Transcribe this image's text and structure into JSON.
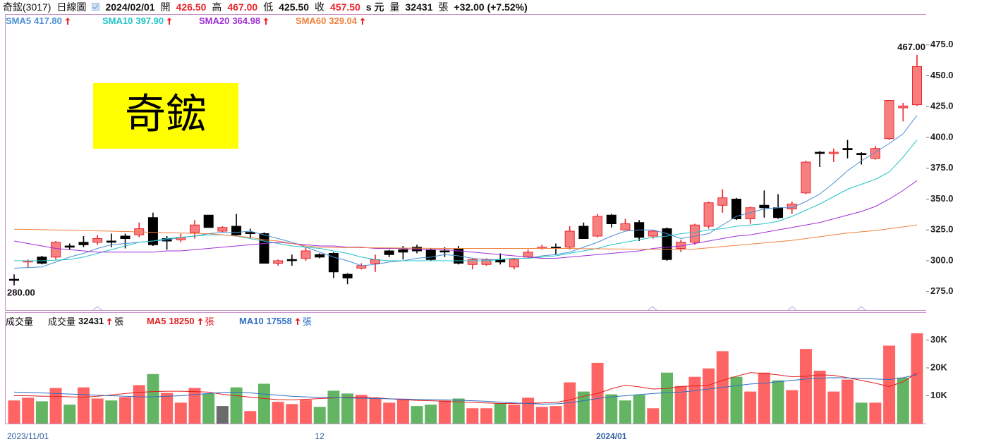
{
  "header": {
    "name": "奇鋐(3017)",
    "period": "日線圖",
    "date": "2024/02/01",
    "open_label": "開",
    "open": "426.50",
    "high_label": "高",
    "high": "467.00",
    "low_label": "低",
    "low": "425.50",
    "close_label": "收",
    "close": "457.50",
    "unit": "s 元",
    "volume_label": "量",
    "volume": "32431",
    "volume_unit": "張",
    "change": "+32.00 (+7.52%)"
  },
  "chart_data": [
    {
      "type": "candlestick",
      "watermark": "奇鋐",
      "high_label": "467.00",
      "low_label": "280.00",
      "up_color": "#f77f7f",
      "up_edge": "#e8262c",
      "down_color": "#000000",
      "open": [
        285,
        299,
        303,
        303,
        312,
        315,
        315,
        316,
        320,
        321,
        335,
        318,
        317,
        323,
        337,
        324,
        328,
        323,
        322,
        298,
        301,
        302,
        305,
        306,
        289,
        294,
        298,
        308,
        309,
        311,
        309,
        308,
        310,
        297,
        297,
        301,
        295,
        303,
        310,
        311,
        311,
        328,
        320,
        337,
        325,
        331,
        320,
        326,
        310,
        315,
        328,
        345,
        350,
        334,
        345,
        343,
        342,
        355,
        388,
        387,
        391,
        387,
        383,
        399,
        424,
        426.5
      ],
      "high": [
        289,
        301,
        304,
        316,
        314,
        320,
        321,
        322,
        322,
        331,
        339,
        320,
        322,
        333,
        337,
        328,
        338,
        326,
        323,
        301,
        305,
        311,
        306,
        307,
        290,
        298,
        305,
        309,
        312,
        313,
        310,
        311,
        312,
        302,
        302,
        306,
        302,
        309,
        313,
        314,
        328,
        331,
        338,
        338,
        334,
        333,
        325,
        327,
        317,
        330,
        348,
        358,
        351,
        344,
        357,
        354,
        348,
        381,
        389,
        391,
        398,
        388,
        393,
        430,
        428,
        467
      ],
      "low": [
        280,
        294,
        297,
        301,
        309,
        311,
        313,
        311,
        310,
        319,
        312,
        309,
        315,
        318,
        327,
        323,
        320,
        318,
        298,
        296,
        296,
        300,
        302,
        286,
        281,
        293,
        291,
        303,
        301,
        306,
        300,
        303,
        297,
        293,
        296,
        297,
        293,
        302,
        309,
        305,
        309,
        318,
        319,
        327,
        325,
        316,
        318,
        300,
        307,
        313,
        326,
        339,
        333,
        330,
        335,
        334,
        338,
        354,
        376,
        380,
        383,
        378,
        382,
        398,
        413,
        425.5
      ],
      "close": [
        285,
        300,
        298,
        315,
        311,
        313,
        318,
        315,
        318,
        326,
        313,
        316,
        319,
        329,
        327,
        327,
        321,
        322,
        298,
        300,
        301,
        308,
        303,
        291,
        286,
        296,
        301,
        305,
        307,
        308,
        301,
        308,
        298,
        301,
        301,
        299,
        301,
        307,
        311,
        311,
        324,
        318,
        336,
        330,
        330,
        319,
        324,
        301,
        315,
        329,
        347,
        351,
        334,
        343,
        343,
        335,
        346,
        380,
        387,
        388,
        390,
        386,
        391,
        430,
        425.5,
        457.5
      ],
      "series": [
        {
          "name": "SMA5",
          "color": "#4a8fd6",
          "legend_value": "417.80",
          "values": [
            294,
            294.5,
            295,
            299,
            303,
            306,
            310,
            313,
            314,
            315,
            316,
            317,
            319,
            320,
            322,
            323,
            323,
            324,
            321,
            318,
            315,
            311,
            307,
            303,
            300,
            296,
            297,
            299,
            300,
            302,
            303,
            305,
            304,
            302,
            301,
            301,
            302,
            302,
            304,
            305,
            307,
            311,
            315,
            320,
            324,
            325,
            325,
            322,
            318,
            320,
            322,
            329,
            336,
            339,
            342,
            343,
            343,
            348,
            354,
            363,
            373,
            381,
            388,
            395,
            403,
            417.8
          ]
        },
        {
          "name": "SMA10",
          "color": "#22c4c8",
          "legend_value": "397.90",
          "values": [
            300,
            300,
            300,
            300.5,
            301,
            303,
            306,
            309,
            312,
            315,
            316,
            318,
            319,
            320,
            321,
            321,
            320,
            318,
            316,
            314,
            312,
            311,
            310,
            308,
            306,
            303,
            301,
            300,
            300,
            300,
            300,
            300,
            300,
            300,
            300,
            301,
            302,
            302,
            303,
            304,
            306,
            308,
            310,
            313,
            315,
            317,
            319,
            320,
            322,
            323,
            325,
            326,
            328,
            329,
            330,
            332,
            336,
            341,
            346,
            352,
            358,
            362,
            366,
            372,
            384,
            397.9
          ]
        },
        {
          "name": "SMA20",
          "color": "#a02ed8",
          "legend_value": "364.98",
          "values": [
            316,
            314,
            312,
            310,
            309,
            308,
            307,
            307,
            307,
            307,
            307,
            308,
            308,
            309,
            310,
            311,
            312,
            313,
            314,
            315,
            314,
            313,
            312,
            312,
            311,
            311,
            310,
            310,
            310,
            309,
            309,
            309,
            308,
            307,
            306,
            305,
            304,
            303,
            302,
            302,
            303,
            304,
            305,
            306,
            307,
            308,
            310,
            311,
            312,
            314,
            316,
            318,
            320,
            321,
            323,
            325,
            327,
            329,
            331,
            334,
            337,
            340,
            344,
            350,
            357,
            364.98
          ]
        },
        {
          "name": "SMA60",
          "color": "#f0803c",
          "legend_value": "329.04",
          "values": [
            325.6,
            325.4,
            325.2,
            325,
            324.8,
            324.5,
            324.2,
            324,
            323.7,
            323.4,
            323.1,
            322.8,
            322.5,
            322.2,
            322,
            321,
            320,
            319,
            317,
            316,
            314,
            312,
            311,
            310.8,
            310.7,
            310.6,
            310.5,
            310.4,
            310.3,
            310.2,
            310.1,
            310,
            310,
            310,
            310,
            310,
            310,
            310,
            310,
            310,
            310,
            309.8,
            309.7,
            309.6,
            309.5,
            309.4,
            309.3,
            309.2,
            309.1,
            309.5,
            310.5,
            311.5,
            312.5,
            313.5,
            314.5,
            315.5,
            316.5,
            318,
            319.5,
            321,
            322.5,
            323.5,
            324.5,
            326,
            327.5,
            329.04
          ]
        }
      ],
      "ylim": [
        260,
        500
      ],
      "yticks": [
        {
          "value": 275,
          "label": "275.0"
        },
        {
          "value": 300,
          "label": "300.0"
        },
        {
          "value": 325,
          "label": "325.0"
        },
        {
          "value": 350,
          "label": "350.0"
        },
        {
          "value": 375,
          "label": "375.0"
        },
        {
          "value": 400,
          "label": "400.0"
        },
        {
          "value": 425,
          "label": "425.0"
        },
        {
          "value": 450,
          "label": "450.0"
        },
        {
          "value": 475,
          "label": "475.0"
        }
      ],
      "grid": false
    },
    {
      "type": "bar",
      "title": "成交量",
      "name": "成交量",
      "legend_value": "32431",
      "unit": "張",
      "categories": [
        "2023/11/01",
        null,
        null,
        null,
        null,
        null,
        null,
        null,
        null,
        null,
        null,
        null,
        null,
        null,
        null,
        null,
        null,
        null,
        null,
        null,
        null,
        null,
        "12",
        null,
        null,
        null,
        null,
        null,
        null,
        null,
        null,
        null,
        null,
        null,
        null,
        null,
        null,
        null,
        null,
        null,
        null,
        null,
        null,
        "2024/01",
        null,
        null,
        null,
        null,
        null,
        null,
        null,
        null,
        null,
        null,
        null,
        null,
        null,
        null,
        null,
        null,
        null,
        null,
        null,
        null,
        null,
        null
      ],
      "values": [
        8300,
        9300,
        8000,
        12800,
        6800,
        13000,
        9000,
        8300,
        9500,
        13800,
        17800,
        11000,
        7500,
        12800,
        10800,
        6300,
        13000,
        4500,
        14300,
        7800,
        7000,
        8500,
        6000,
        11800,
        10800,
        10300,
        9000,
        7500,
        8800,
        6300,
        6800,
        8300,
        9000,
        5500,
        5500,
        7300,
        6800,
        9300,
        6000,
        6300,
        14800,
        11500,
        21800,
        10500,
        8300,
        10300,
        5500,
        18300,
        13500,
        16800,
        19800,
        26000,
        16800,
        11500,
        18300,
        15500,
        12000,
        26800,
        19000,
        11500,
        15800,
        7500,
        7500,
        28000,
        16500,
        32431
      ],
      "colors": [
        "#ff6464",
        "#ff6464",
        "#63b563",
        "#ff6464",
        "#63b563",
        "#ff6464",
        "#ff6464",
        "#63b563",
        "#ff6464",
        "#ff6464",
        "#63b563",
        "#ff6464",
        "#ff6464",
        "#ff6464",
        "#63b563",
        "#6b6b6b",
        "#63b563",
        "#ff6464",
        "#63b563",
        "#ff6464",
        "#ff6464",
        "#ff6464",
        "#63b563",
        "#63b563",
        "#63b563",
        "#ff6464",
        "#ff6464",
        "#ff6464",
        "#ff6464",
        "#63b563",
        "#63b563",
        "#ff6464",
        "#63b563",
        "#ff6464",
        "#ff6464",
        "#63b563",
        "#ff6464",
        "#ff6464",
        "#ff6464",
        "#ff6464",
        "#ff6464",
        "#63b563",
        "#ff6464",
        "#63b563",
        "#63b563",
        "#63b563",
        "#ff6464",
        "#63b563",
        "#ff6464",
        "#ff6464",
        "#ff6464",
        "#ff6464",
        "#63b563",
        "#ff6464",
        "#ff6464",
        "#63b563",
        "#ff6464",
        "#ff6464",
        "#ff6464",
        "#ff6464",
        "#ff6464",
        "#63b563",
        "#ff6464",
        "#ff6464",
        "#63b563",
        "#ff6464"
      ],
      "series": [
        {
          "name": "MA5",
          "color": "#e02020",
          "legend_value": "18250",
          "values": [
            10000,
            10000,
            9800,
            9800,
            9600,
            9500,
            9800,
            10300,
            10800,
            11200,
            11500,
            11600,
            11600,
            11500,
            11300,
            10500,
            10000,
            9500,
            9000,
            8600,
            8500,
            8700,
            9000,
            9200,
            9400,
            9400,
            9300,
            8900,
            8600,
            8300,
            8200,
            8000,
            7800,
            7600,
            7400,
            7200,
            7200,
            7300,
            7400,
            7600,
            8500,
            9800,
            10800,
            12500,
            13800,
            13200,
            12400,
            12600,
            13300,
            13500,
            13800,
            15500,
            17000,
            18300,
            18000,
            17500,
            16800,
            17000,
            17500,
            17300,
            16500,
            15500,
            14500,
            13300,
            15000,
            18250
          ]
        },
        {
          "name": "MA10",
          "color": "#2f6fc4",
          "legend_value": "17558",
          "values": [
            11300,
            11200,
            11000,
            10800,
            10600,
            10400,
            10200,
            10000,
            9800,
            9600,
            9600,
            9800,
            10000,
            10400,
            10800,
            11200,
            11300,
            11000,
            10600,
            10200,
            9800,
            9600,
            9400,
            9300,
            9200,
            9100,
            9000,
            8900,
            8800,
            8700,
            8600,
            8500,
            8400,
            8200,
            8000,
            7700,
            7400,
            7200,
            7000,
            7100,
            7500,
            8200,
            9000,
            9600,
            10000,
            10400,
            10800,
            11100,
            11300,
            11800,
            12400,
            13000,
            13600,
            14200,
            14500,
            15000,
            15500,
            16000,
            16300,
            16500,
            16400,
            16200,
            16000,
            15800,
            16500,
            17558
          ]
        }
      ],
      "ylim": [
        0,
        40000
      ],
      "yticks": [
        {
          "value": 10000,
          "label": "10K"
        },
        {
          "value": 20000,
          "label": "20K"
        },
        {
          "value": 30000,
          "label": "30K"
        }
      ]
    }
  ]
}
